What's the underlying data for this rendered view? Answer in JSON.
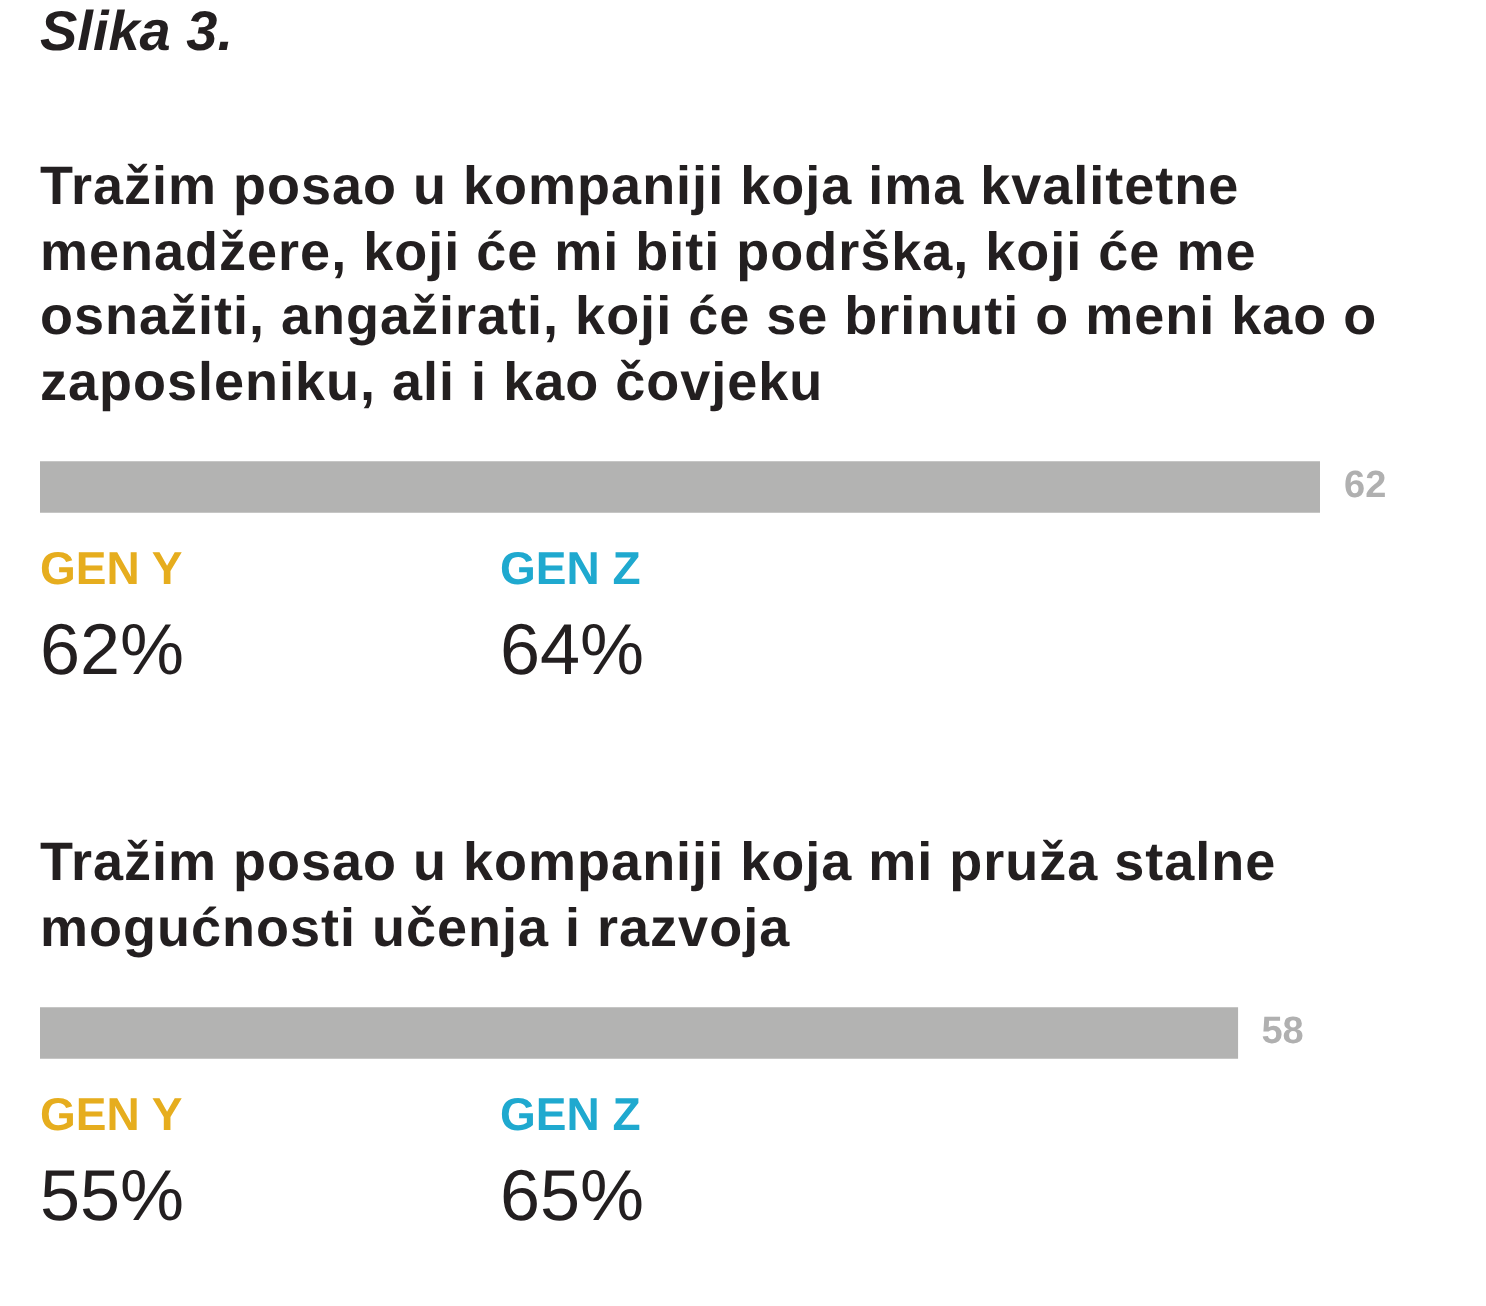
{
  "chart_data": {
    "type": "bar",
    "orientation": "horizontal",
    "title": "Slika 3.",
    "categories": [
      "Tražim posao u kompaniji koja ima kvalitetne menadžere, koji će mi biti podrška, koji će me osnažiti, angažirati, koji će se brinuti o meni kao o zaposleniku, ali i kao čovjeku",
      "Tražim posao u kompaniji koja mi pruža stalne mogućnosti učenja i razvoja"
    ],
    "values": [
      62,
      58
    ],
    "color": "#b3b3b2",
    "tick_labels": false,
    "data_labels": true,
    "annotations": [
      "GEN Y",
      "62%",
      "GEN Z",
      "64%",
      "GEN Y",
      "55%",
      "GEN Z",
      "65%"
    ]
  }
}
